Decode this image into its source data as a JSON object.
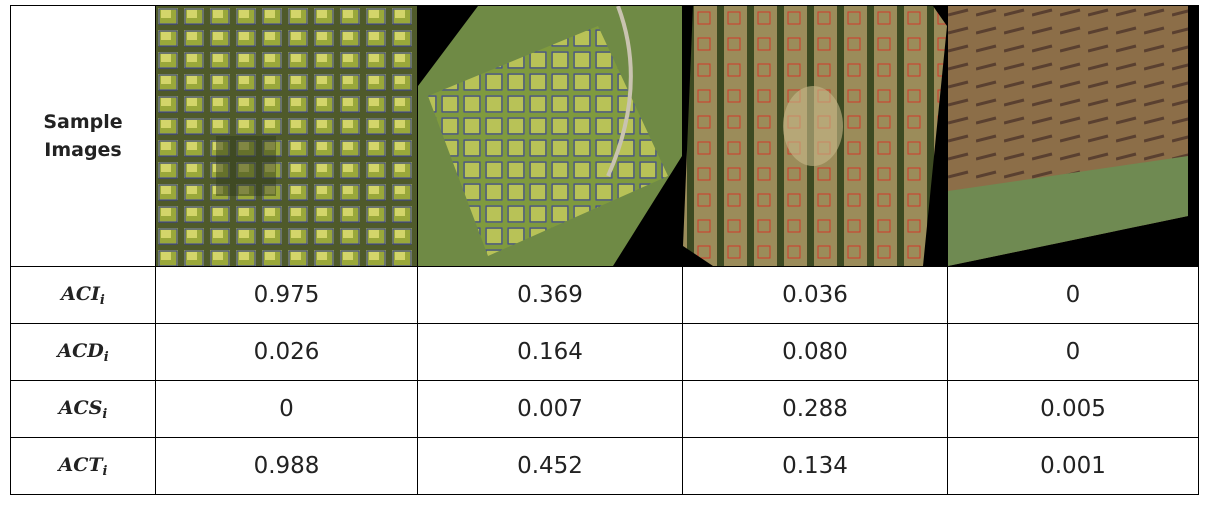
{
  "table": {
    "header": "Sample Images",
    "rows": [
      {
        "label": {
          "base": "ACI",
          "sub": "i"
        },
        "values": [
          "0.975",
          "0.369",
          "0.036",
          "0"
        ]
      },
      {
        "label": {
          "base": "ACD",
          "sub": "i"
        },
        "values": [
          "0.026",
          "0.164",
          "0.080",
          "0"
        ]
      },
      {
        "label": {
          "base": "ACS",
          "sub": "i"
        },
        "values": [
          "0",
          "0.007",
          "0.288",
          "0.005"
        ]
      },
      {
        "label": {
          "base": "ACT",
          "sub": "i"
        },
        "values": [
          "0.988",
          "0.452",
          "0.134",
          "0.001"
        ]
      }
    ]
  }
}
